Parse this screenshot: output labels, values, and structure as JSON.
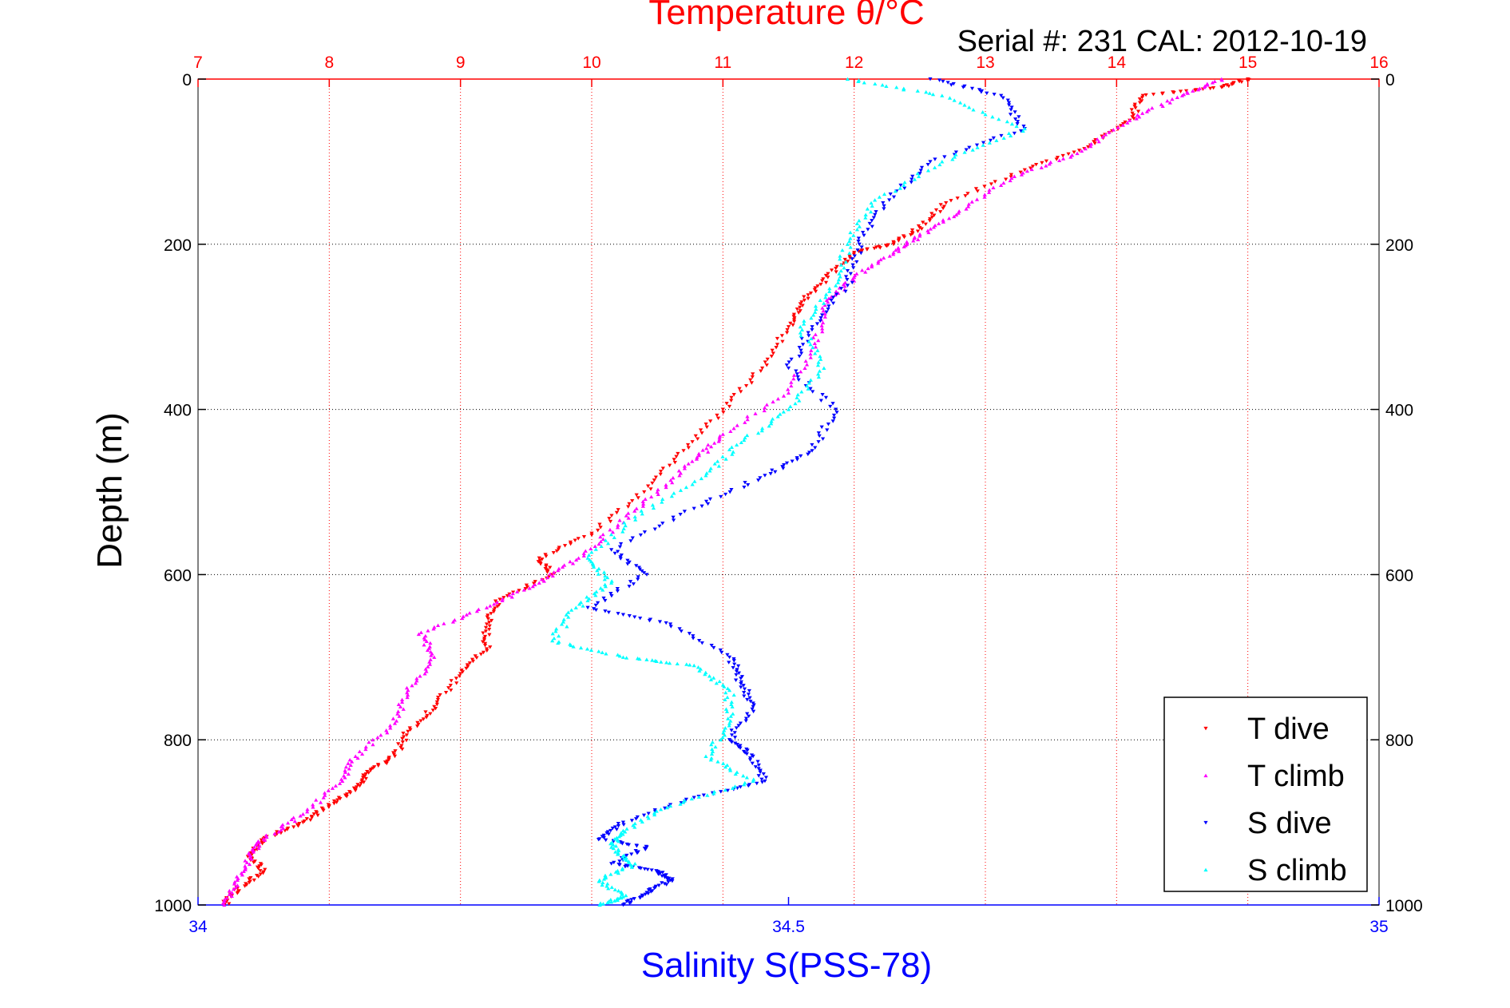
{
  "chart_data": {
    "type": "scatter",
    "title": "Temperature θ/°C",
    "subtitle": "Serial #: 231  CAL: 2012-10-19",
    "ylabel": "Depth (m)",
    "xlabel": "Salinity S(PSS-78)",
    "ylim": [
      0,
      1000
    ],
    "y_reversed": true,
    "temperature_axis": {
      "position": "top",
      "range": [
        7,
        16
      ],
      "ticks": [
        "7",
        "8",
        "9",
        "10",
        "11",
        "12",
        "13",
        "14",
        "15",
        "16"
      ],
      "color": "#ff0000"
    },
    "salinity_axis": {
      "position": "bottom",
      "range": [
        34,
        35
      ],
      "ticks": [
        "34",
        "34.5",
        "35"
      ],
      "color": "#0000ff"
    },
    "depth_ticks": [
      "0",
      "200",
      "400",
      "600",
      "800",
      "1000"
    ],
    "grid": true,
    "legend": {
      "placement": "bottom-right",
      "entries": [
        "T dive",
        "T climb",
        "S dive",
        "S climb"
      ]
    },
    "series": [
      {
        "name": "T dive",
        "axis": "temperature",
        "color": "#ff0000",
        "marker": "triangle-down",
        "x": [
          15.0,
          14.8,
          14.2,
          14.1,
          13.8,
          13.3,
          12.7,
          12.5,
          12.3,
          12.0,
          11.8,
          11.6,
          11.5,
          11.3,
          11.0,
          10.7,
          10.4,
          10.0,
          9.6,
          9.7,
          9.3,
          9.2,
          9.2,
          9.0,
          8.8,
          8.6,
          8.5,
          8.3,
          8.2,
          8.0,
          7.8,
          7.5,
          7.4,
          7.5,
          7.3,
          7.2
        ],
        "y": [
          0,
          10,
          20,
          50,
          80,
          110,
          150,
          180,
          200,
          210,
          240,
          270,
          300,
          350,
          400,
          450,
          500,
          550,
          580,
          600,
          630,
          660,
          690,
          720,
          760,
          790,
          820,
          840,
          860,
          880,
          900,
          920,
          940,
          960,
          980,
          1000
        ]
      },
      {
        "name": "T climb",
        "axis": "temperature",
        "color": "#ff00ff",
        "marker": "triangle-up",
        "x": [
          14.8,
          14.5,
          14.1,
          13.7,
          13.2,
          12.8,
          12.5,
          12.3,
          12.0,
          11.8,
          11.7,
          11.5,
          11.0,
          10.8,
          10.5,
          10.2,
          9.9,
          9.6,
          9.2,
          8.7,
          8.8,
          8.6,
          8.5,
          8.2,
          8.1,
          7.8,
          7.5,
          7.4,
          7.3,
          7.2
        ],
        "y": [
          0,
          20,
          50,
          90,
          120,
          160,
          190,
          210,
          240,
          270,
          320,
          380,
          430,
          460,
          500,
          540,
          580,
          610,
          640,
          670,
          700,
          740,
          780,
          820,
          850,
          890,
          920,
          940,
          970,
          1000
        ]
      },
      {
        "name": "S dive",
        "axis": "salinity",
        "color": "#0000ff",
        "marker": "triangle-down",
        "x": [
          34.62,
          34.68,
          34.7,
          34.62,
          34.58,
          34.56,
          34.55,
          34.52,
          34.5,
          34.54,
          34.52,
          34.48,
          34.42,
          34.35,
          34.38,
          34.33,
          34.4,
          34.45,
          34.46,
          34.47,
          34.45,
          34.47,
          34.48,
          34.42,
          34.36,
          34.34,
          34.38,
          34.35,
          34.39,
          34.4,
          34.38,
          34.36
        ],
        "y": [
          0,
          20,
          60,
          100,
          150,
          200,
          250,
          300,
          350,
          400,
          450,
          480,
          520,
          570,
          600,
          640,
          660,
          700,
          730,
          760,
          800,
          820,
          850,
          870,
          900,
          920,
          930,
          950,
          960,
          970,
          985,
          1000
        ]
      },
      {
        "name": "S climb",
        "axis": "salinity",
        "color": "#00ffff",
        "marker": "triangle-up",
        "x": [
          34.55,
          34.63,
          34.7,
          34.63,
          34.57,
          34.55,
          34.54,
          34.51,
          34.53,
          34.5,
          34.46,
          34.43,
          34.37,
          34.33,
          34.35,
          34.32,
          34.3,
          34.36,
          34.42,
          34.45,
          34.45,
          34.43,
          34.47,
          34.4,
          34.36,
          34.35,
          34.37,
          34.34,
          34.36,
          34.34
        ],
        "y": [
          0,
          20,
          60,
          100,
          150,
          200,
          250,
          300,
          350,
          400,
          440,
          480,
          530,
          580,
          610,
          640,
          680,
          700,
          710,
          740,
          780,
          820,
          850,
          880,
          910,
          930,
          950,
          970,
          990,
          1000
        ]
      }
    ]
  }
}
